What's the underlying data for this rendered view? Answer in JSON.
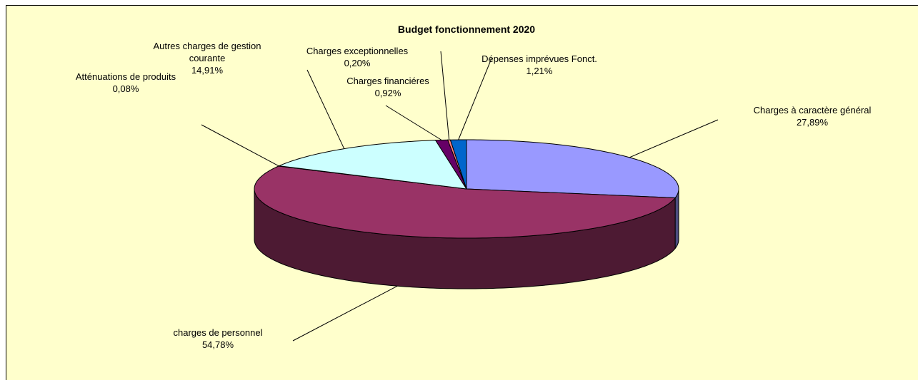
{
  "chart_data": {
    "type": "pie3d",
    "title": "Budget fonctionnement 2020",
    "categories": [
      "Charges à caractère général",
      "charges de personnel",
      "Atténuations de produits",
      "Autres charges de gestion courante",
      "Charges financiéres",
      "Charges exceptionnelles",
      "Dépenses imprévues Fonct."
    ],
    "values": [
      27.89,
      54.78,
      0.08,
      14.91,
      0.92,
      0.2,
      1.21
    ],
    "value_labels": [
      "27,89%",
      "54,78%",
      "0,08%",
      "14,91%",
      "0,92%",
      "0,20%",
      "1,21%"
    ],
    "colors": [
      "#9999ff",
      "#993366",
      "#ffffcc",
      "#ccffff",
      "#660066",
      "#ff8080",
      "#0066cc"
    ]
  }
}
